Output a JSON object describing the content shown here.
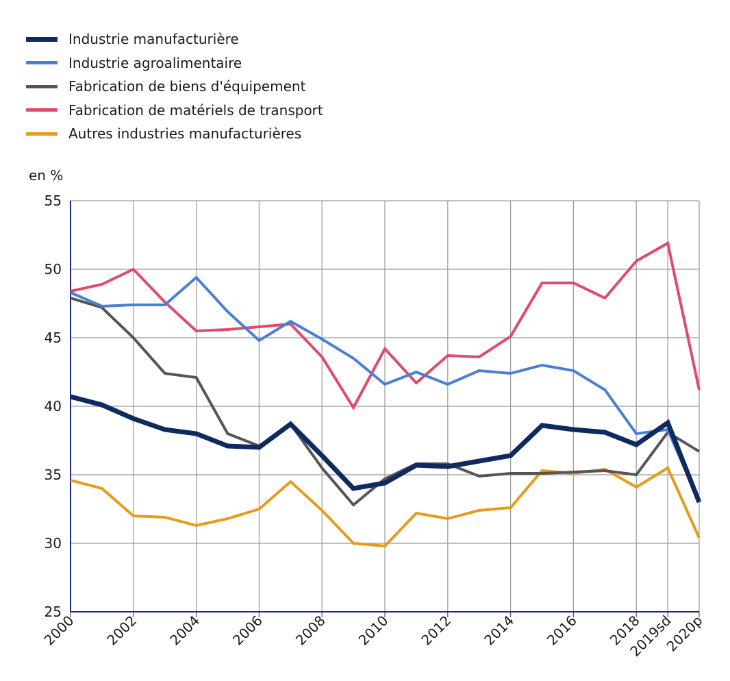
{
  "chart_data": {
    "type": "line",
    "ylabel": "en %",
    "ylim": [
      25,
      55
    ],
    "yticks": [
      25,
      30,
      35,
      40,
      45,
      50,
      55
    ],
    "x": [
      "2000",
      "2001",
      "2002",
      "2003",
      "2004",
      "2005",
      "2006",
      "2007",
      "2008",
      "2009",
      "2010",
      "2011",
      "2012",
      "2013",
      "2014",
      "2015",
      "2016",
      "2017",
      "2018",
      "2019sd",
      "2020p"
    ],
    "x_tick_labels": [
      "2000",
      "2002",
      "2004",
      "2006",
      "2008",
      "2010",
      "2012",
      "2014",
      "2016",
      "2018",
      "2019sd",
      "2020p"
    ],
    "grid": true,
    "legend_position": "top-left",
    "series": [
      {
        "name": "Industrie manufacturière",
        "color": "#0e2a5e",
        "values": [
          40.7,
          40.1,
          39.1,
          38.3,
          38.0,
          37.1,
          37.0,
          38.7,
          36.4,
          34.0,
          34.4,
          35.7,
          35.6,
          36.0,
          36.4,
          38.6,
          38.3,
          38.1,
          37.2,
          38.8,
          33.0
        ]
      },
      {
        "name": "Industrie agroalimentaire",
        "color": "#4a7fd4",
        "values": [
          48.3,
          47.3,
          47.4,
          47.4,
          49.4,
          46.9,
          44.8,
          46.2,
          44.9,
          43.5,
          41.6,
          42.5,
          41.6,
          42.6,
          42.4,
          43.0,
          42.6,
          41.2,
          38.0,
          38.3,
          33.0
        ]
      },
      {
        "name": "Fabrication de biens d'équipement",
        "color": "#555555",
        "values": [
          47.9,
          47.2,
          45.0,
          42.4,
          42.1,
          38.0,
          37.1,
          38.7,
          35.5,
          32.8,
          34.7,
          35.8,
          35.8,
          34.9,
          35.1,
          35.1,
          35.2,
          35.3,
          35.0,
          38.1,
          36.7
        ]
      },
      {
        "name": "Fabrication de matériels de transport",
        "color": "#e04a6c",
        "values": [
          48.4,
          48.9,
          50.0,
          47.6,
          45.5,
          45.6,
          45.8,
          46.0,
          43.6,
          39.9,
          44.2,
          41.7,
          43.7,
          43.6,
          45.1,
          49.0,
          49.0,
          47.9,
          50.6,
          51.9,
          41.2
        ]
      },
      {
        "name": "Autres industries manufacturières",
        "color": "#e89a1c",
        "values": [
          34.6,
          34.0,
          32.0,
          31.9,
          31.3,
          31.8,
          32.5,
          34.5,
          32.4,
          30.0,
          29.8,
          32.2,
          31.8,
          32.4,
          32.6,
          35.3,
          35.1,
          35.4,
          34.1,
          35.5,
          30.4
        ]
      }
    ]
  }
}
